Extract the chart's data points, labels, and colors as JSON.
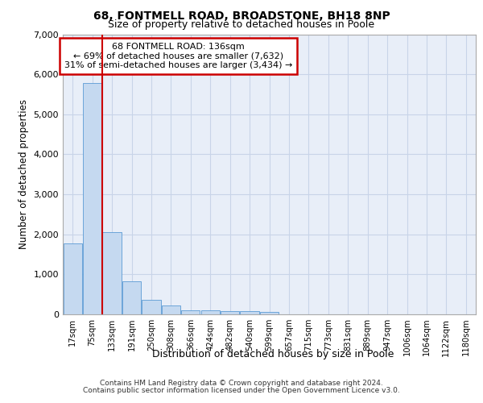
{
  "title1": "68, FONTMELL ROAD, BROADSTONE, BH18 8NP",
  "title2": "Size of property relative to detached houses in Poole",
  "xlabel": "Distribution of detached houses by size in Poole",
  "ylabel": "Number of detached properties",
  "bar_color": "#c5d9f0",
  "bar_edge_color": "#5b9bd5",
  "grid_color": "#c8d4e8",
  "background_color": "#e8eef8",
  "vline_color": "#cc0000",
  "annotation_box_edge": "#cc0000",
  "categories": [
    "17sqm",
    "75sqm",
    "133sqm",
    "191sqm",
    "250sqm",
    "308sqm",
    "366sqm",
    "424sqm",
    "482sqm",
    "540sqm",
    "599sqm",
    "657sqm",
    "715sqm",
    "773sqm",
    "831sqm",
    "889sqm",
    "947sqm",
    "1006sqm",
    "1064sqm",
    "1122sqm",
    "1180sqm"
  ],
  "values": [
    1780,
    5780,
    2060,
    830,
    370,
    220,
    110,
    110,
    90,
    80,
    60,
    0,
    0,
    0,
    0,
    0,
    0,
    0,
    0,
    0,
    0
  ],
  "vline_bin_index": 2,
  "annotation_line1": "68 FONTMELL ROAD: 136sqm",
  "annotation_line2": "← 69% of detached houses are smaller (7,632)",
  "annotation_line3": "31% of semi-detached houses are larger (3,434) →",
  "footnote1": "Contains HM Land Registry data © Crown copyright and database right 2024.",
  "footnote2": "Contains public sector information licensed under the Open Government Licence v3.0.",
  "ylim": [
    0,
    7000
  ],
  "yticks": [
    0,
    1000,
    2000,
    3000,
    4000,
    5000,
    6000,
    7000
  ]
}
